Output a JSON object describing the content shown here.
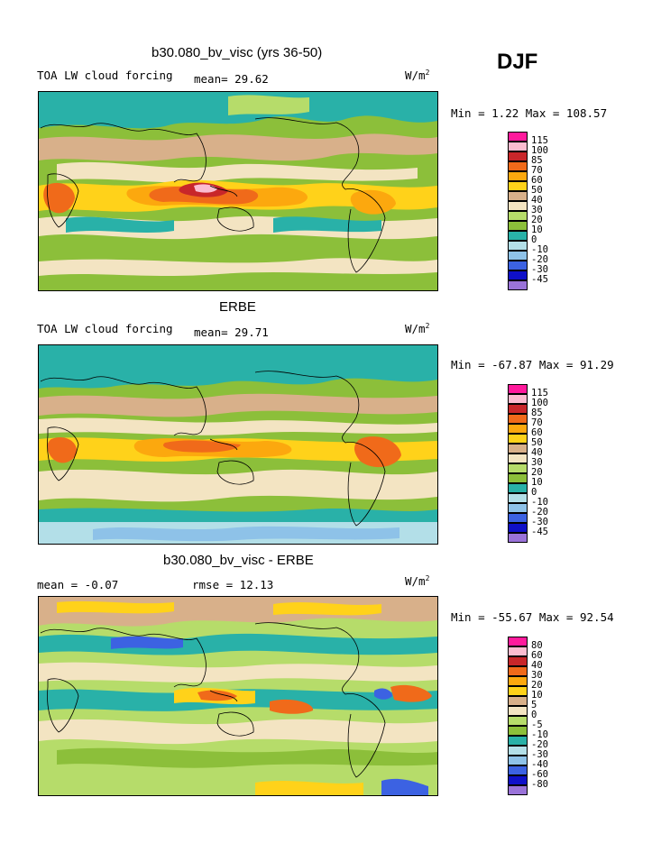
{
  "season": "DJF",
  "palette": {
    "c_neg45": "#9a73d9",
    "c_neg30": "#0f10c8",
    "c_neg20": "#3c62e2",
    "c_neg10": "#8ec2e8",
    "c_0": "#b3dfe8",
    "c_10": "#29b1a8",
    "c_20": "#8cbf3a",
    "c_30": "#b6dc6a",
    "c_40": "#f3e4c2",
    "c_50": "#d8b08a",
    "c_60": "#ffd21a",
    "c_70": "#fca80e",
    "c_85": "#f06a1a",
    "c_100": "#c8262a",
    "c_115": "#fbbcd0",
    "c_top": "#ff1a9c"
  },
  "panels": [
    {
      "title": "b30.080_bv_visc (yrs 36-50)",
      "left_label": "TOA LW cloud forcing",
      "mean_text": "mean=  29.62",
      "units_base": "W/m",
      "units_exp": "2",
      "minmax": "Min =    1.22 Max = 108.57"
    },
    {
      "title": "ERBE",
      "left_label": "TOA LW cloud forcing",
      "mean_text": "mean=  29.71",
      "units_base": "W/m",
      "units_exp": "2",
      "minmax": "Min = -67.87 Max =  91.29"
    },
    {
      "title": "b30.080_bv_visc - ERBE",
      "left_label": "mean =   -0.07",
      "mean_text": "rmse =  12.13",
      "units_base": "W/m",
      "units_exp": "2",
      "minmax": "Min = -55.67 Max =  92.54"
    }
  ],
  "chart_data": [
    {
      "type": "heatmap",
      "title": "b30.080_bv_visc (yrs 36-50)",
      "field": "TOA LW cloud forcing",
      "units": "W/m2",
      "season": "DJF",
      "mean": 29.62,
      "min": 1.22,
      "max": 108.57,
      "contour_levels": [
        "115",
        "100",
        "85",
        "70",
        "60",
        "50",
        "40",
        "30",
        "20",
        "10",
        "0",
        "-10",
        "-20",
        "-30",
        "-45"
      ]
    },
    {
      "type": "heatmap",
      "title": "ERBE",
      "field": "TOA LW cloud forcing",
      "units": "W/m2",
      "season": "DJF",
      "mean": 29.71,
      "min": -67.87,
      "max": 91.29,
      "contour_levels": [
        "115",
        "100",
        "85",
        "70",
        "60",
        "50",
        "40",
        "30",
        "20",
        "10",
        "0",
        "-10",
        "-20",
        "-30",
        "-45"
      ]
    },
    {
      "type": "heatmap",
      "title": "b30.080_bv_visc - ERBE",
      "field": "difference",
      "units": "W/m2",
      "season": "DJF",
      "mean": -0.07,
      "rmse": 12.13,
      "min": -55.67,
      "max": 92.54,
      "contour_levels": [
        "80",
        "60",
        "40",
        "30",
        "20",
        "10",
        "5",
        "0",
        "-5",
        "-10",
        "-20",
        "-30",
        "-40",
        "-60",
        "-80"
      ]
    }
  ]
}
